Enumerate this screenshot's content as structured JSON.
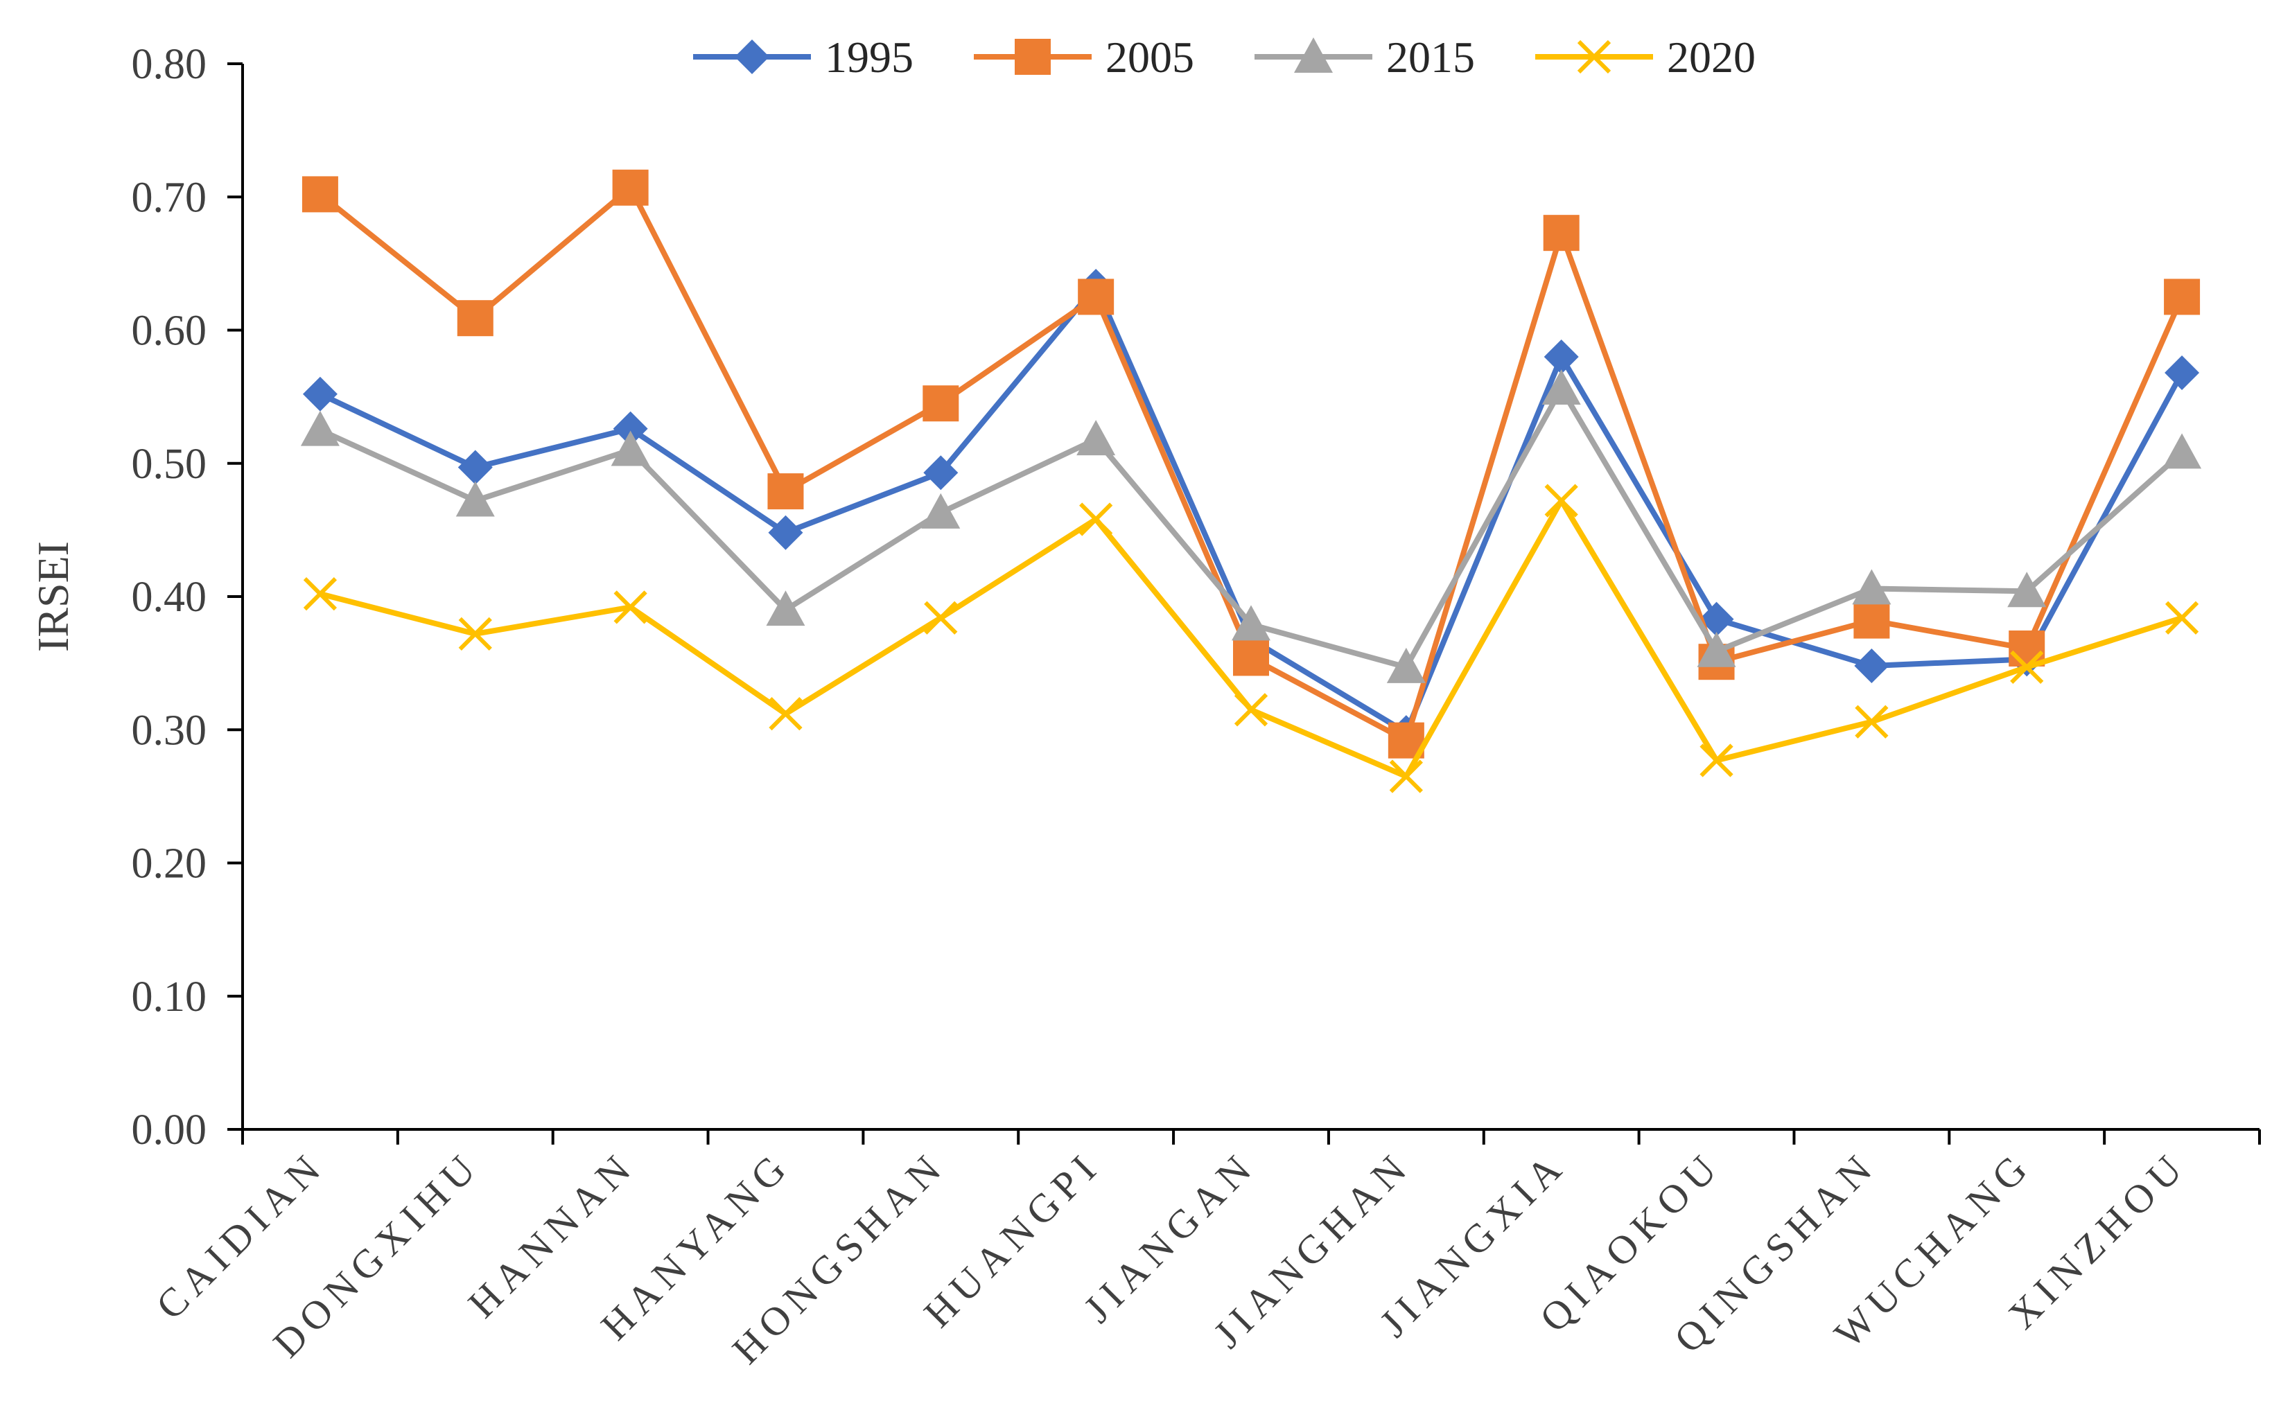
{
  "chart_data": {
    "type": "line",
    "title": "",
    "xlabel": "",
    "ylabel": "IRSEI",
    "ylim": [
      0,
      0.8
    ],
    "yticks": [
      "0.00",
      "0.10",
      "0.20",
      "0.30",
      "0.40",
      "0.50",
      "0.60",
      "0.70",
      "0.80"
    ],
    "grid": false,
    "legend_position": "top",
    "categories": [
      "CAIDIAN",
      "DONGXIHU",
      "HANNAN",
      "HANYANG",
      "HONGSHAN",
      "HUANGPI",
      "JIANGAN",
      "JIANGHAN",
      "JIANGXIA",
      "QIAOKOU",
      "QINGSHAN",
      "WUCHANG",
      "XINZHOU"
    ],
    "series": [
      {
        "name": "1995",
        "color": "#4472C4",
        "marker": "diamond",
        "values": [
          0.552,
          0.497,
          0.526,
          0.448,
          0.493,
          0.633,
          0.368,
          0.298,
          0.58,
          0.383,
          0.348,
          0.353,
          0.568
        ]
      },
      {
        "name": "2005",
        "color": "#ED7D31",
        "marker": "square",
        "values": [
          0.702,
          0.609,
          0.707,
          0.479,
          0.545,
          0.625,
          0.354,
          0.292,
          0.673,
          0.351,
          0.382,
          0.361,
          0.625
        ]
      },
      {
        "name": "2015",
        "color": "#A5A5A5",
        "marker": "triangle",
        "values": [
          0.525,
          0.472,
          0.51,
          0.39,
          0.463,
          0.518,
          0.379,
          0.347,
          0.556,
          0.359,
          0.406,
          0.404,
          0.508
        ]
      },
      {
        "name": "2020",
        "color": "#FFC000",
        "marker": "x",
        "values": [
          0.402,
          0.372,
          0.392,
          0.312,
          0.384,
          0.458,
          0.315,
          0.265,
          0.472,
          0.277,
          0.306,
          0.347,
          0.384
        ]
      }
    ]
  }
}
